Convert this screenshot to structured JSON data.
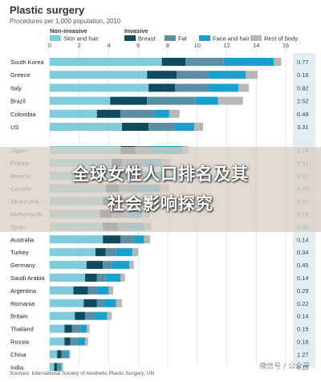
{
  "header": {
    "title": "Plastic surgery",
    "subtitle": "Procedures per 1,000 population, 2010",
    "legend_group_noninvasive": "Non-invasive",
    "legend_group_invasive": "Invasive"
  },
  "overlay": {
    "line1": "全球女性人口排名及其",
    "line2": "社会影响探究"
  },
  "footer": {
    "source": "Sources: International Society of Aesthetic Plastic Surgery; UN",
    "watermark": "微信号 / 公众号"
  },
  "chart_data": {
    "type": "bar",
    "orientation": "horizontal",
    "stacked": true,
    "title": "Plastic surgery",
    "subtitle": "Procedures per 1,000 population, 2010",
    "xlim": [
      0,
      16
    ],
    "xticks": [
      0,
      2,
      4,
      6,
      8,
      10,
      12,
      14,
      16
    ],
    "grid": true,
    "right_column_note": "",
    "colors": {
      "Skin and hair": "#7ecbd9",
      "Breast": "#0f4a5e",
      "Fat": "#5b8ea3",
      "Face and hair": "#1aa0cf",
      "Rest of body": "#b7b7b7"
    },
    "legend_groups": [
      {
        "name": "Non-invasive",
        "series": [
          "Skin and hair"
        ]
      },
      {
        "name": "Invasive",
        "series": [
          "Breast",
          "Fat",
          "Face and hair",
          "Rest of body"
        ]
      }
    ],
    "categories": [
      "South Korea",
      "Greece",
      "Italy",
      "Brazil",
      "Colombia",
      "US",
      "Japan",
      "France",
      "Mexico",
      "Canada",
      "Venezuela",
      "Netherlands",
      "Spain",
      "Australia",
      "Turkey",
      "Germany",
      "Saudi Arabia",
      "Argentina",
      "Romania",
      "Britain",
      "Thailand",
      "Russia",
      "China",
      "India"
    ],
    "right_values": [
      "0.77",
      "0.16",
      "0.82",
      "2.52",
      "0.49",
      "3.31",
      "1.18",
      "0.51",
      "0.52",
      "0.43",
      "0.21",
      "0.16",
      "0.30",
      "0.14",
      "0.34",
      "0.45",
      "0.14",
      "0.29",
      "0.22",
      "0.14",
      "0.15",
      "0.18",
      "1.27",
      "0.15"
    ],
    "series": [
      {
        "name": "Skin and hair",
        "values": [
          7.6,
          6.6,
          6.7,
          4.1,
          3.2,
          4.9,
          4.8,
          4.2,
          4.4,
          3.8,
          3.6,
          3.4,
          3.6,
          3.6,
          3.1,
          2.5,
          2.4,
          1.6,
          2.3,
          1.7,
          1.0,
          1.0,
          0.5,
          0.3
        ]
      },
      {
        "name": "Breast",
        "values": [
          1.6,
          2.0,
          1.8,
          2.5,
          1.6,
          1.8,
          1.0,
          0.7,
          1.0,
          0.9,
          1.2,
          0.8,
          1.0,
          1.2,
          0.7,
          1.1,
          0.8,
          1.0,
          0.9,
          0.7,
          0.5,
          0.4,
          0.3,
          0.2
        ]
      },
      {
        "name": "Fat",
        "values": [
          2.6,
          2.2,
          2.3,
          3.3,
          2.3,
          1.8,
          1.1,
          1.4,
          1.3,
          1.3,
          1.1,
          1.1,
          0.9,
          0.9,
          0.7,
          0.6,
          0.6,
          0.6,
          0.5,
          0.6,
          0.6,
          0.5,
          0.3,
          0.2
        ]
      },
      {
        "name": "Face and hair",
        "values": [
          3.4,
          2.5,
          2.0,
          1.5,
          1.0,
          1.3,
          2.1,
          1.3,
          1.2,
          1.5,
          1.1,
          1.0,
          0.9,
          0.7,
          1.1,
          1.2,
          1.0,
          0.8,
          0.8,
          0.9,
          0.4,
          0.5,
          0.2,
          0.1
        ]
      },
      {
        "name": "Rest of body",
        "values": [
          0.5,
          0.8,
          0.7,
          1.7,
          0.7,
          0.6,
          0.4,
          0.6,
          0.5,
          0.6,
          0.6,
          0.5,
          0.5,
          0.4,
          0.4,
          0.3,
          0.3,
          0.3,
          0.4,
          0.3,
          0.2,
          0.2,
          0.1,
          0.1
        ]
      }
    ]
  }
}
